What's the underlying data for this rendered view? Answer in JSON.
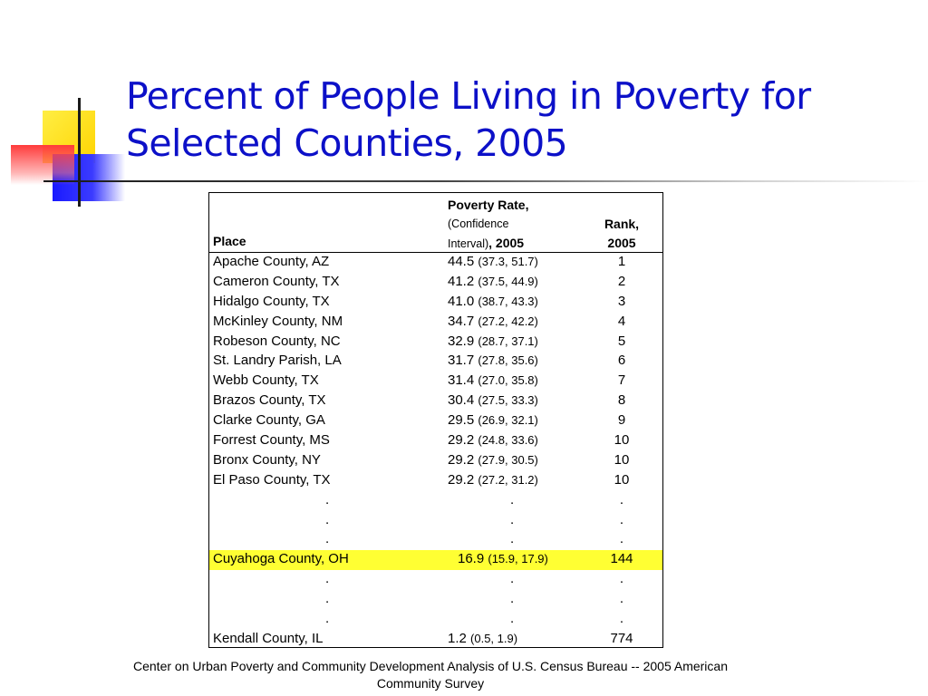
{
  "slide": {
    "title": "Percent of People Living in Poverty for Selected Counties, 2005",
    "footer": "Center on Urban Poverty and Community Development Analysis of U.S. Census Bureau -- 2005 American Community Survey",
    "accent_color": "#0c10c8",
    "highlight_color": "#ffff33"
  },
  "table": {
    "headers": {
      "place": "Place",
      "rate_line1": "Poverty Rate,",
      "rate_line2": "(Confidence",
      "rate_line3a": "Interval)",
      "rate_line3b": ", 2005",
      "rank_line1": "Rank,",
      "rank_line2": "2005"
    },
    "rows": [
      {
        "place": "Apache County, AZ",
        "rate": "44.5",
        "ci": "(37.3, 51.7)",
        "rank": "1"
      },
      {
        "place": "Cameron County, TX",
        "rate": "41.2",
        "ci": "(37.5, 44.9)",
        "rank": "2"
      },
      {
        "place": "Hidalgo County, TX",
        "rate": "41.0",
        "ci": "(38.7, 43.3)",
        "rank": "3"
      },
      {
        "place": "McKinley County, NM",
        "rate": "34.7",
        "ci": "(27.2, 42.2)",
        "rank": "4"
      },
      {
        "place": "Robeson County, NC",
        "rate": "32.9",
        "ci": "(28.7, 37.1)",
        "rank": "5"
      },
      {
        "place": "St. Landry Parish, LA",
        "rate": "31.7",
        "ci": "(27.8, 35.6)",
        "rank": "6"
      },
      {
        "place": "Webb County, TX",
        "rate": "31.4",
        "ci": "(27.0, 35.8)",
        "rank": "7"
      },
      {
        "place": "Brazos County, TX",
        "rate": "30.4",
        "ci": "(27.5, 33.3)",
        "rank": "8"
      },
      {
        "place": "Clarke County, GA",
        "rate": "29.5",
        "ci": "(26.9, 32.1)",
        "rank": "9"
      },
      {
        "place": "Forrest County, MS",
        "rate": "29.2",
        "ci": "(24.8, 33.6)",
        "rank": "10"
      },
      {
        "place": "Bronx County, NY",
        "rate": "29.2",
        "ci": "(27.9, 30.5)",
        "rank": "10"
      },
      {
        "place": "El Paso County, TX",
        "rate": "29.2",
        "ci": "(27.2, 31.2)",
        "rank": "10"
      },
      {
        "place": ".",
        "rate": ".",
        "ci": "",
        "rank": ".",
        "dots": true
      },
      {
        "place": ".",
        "rate": ".",
        "ci": "",
        "rank": ".",
        "dots": true
      },
      {
        "place": ".",
        "rate": ".",
        "ci": "",
        "rank": ".",
        "dots": true
      },
      {
        "place": "Cuyahoga County, OH",
        "rate": "16.9",
        "ci": "(15.9, 17.9)",
        "rank": "144",
        "highlight": true
      },
      {
        "place": ".",
        "rate": ".",
        "ci": "",
        "rank": ".",
        "dots": true
      },
      {
        "place": ".",
        "rate": ".",
        "ci": "",
        "rank": ".",
        "dots": true
      },
      {
        "place": ".",
        "rate": ".",
        "ci": "",
        "rank": ".",
        "dots": true
      },
      {
        "place": "Kendall County, IL",
        "rate": "1.2",
        "ci": "(0.5, 1.9)",
        "rank": "774"
      }
    ]
  }
}
